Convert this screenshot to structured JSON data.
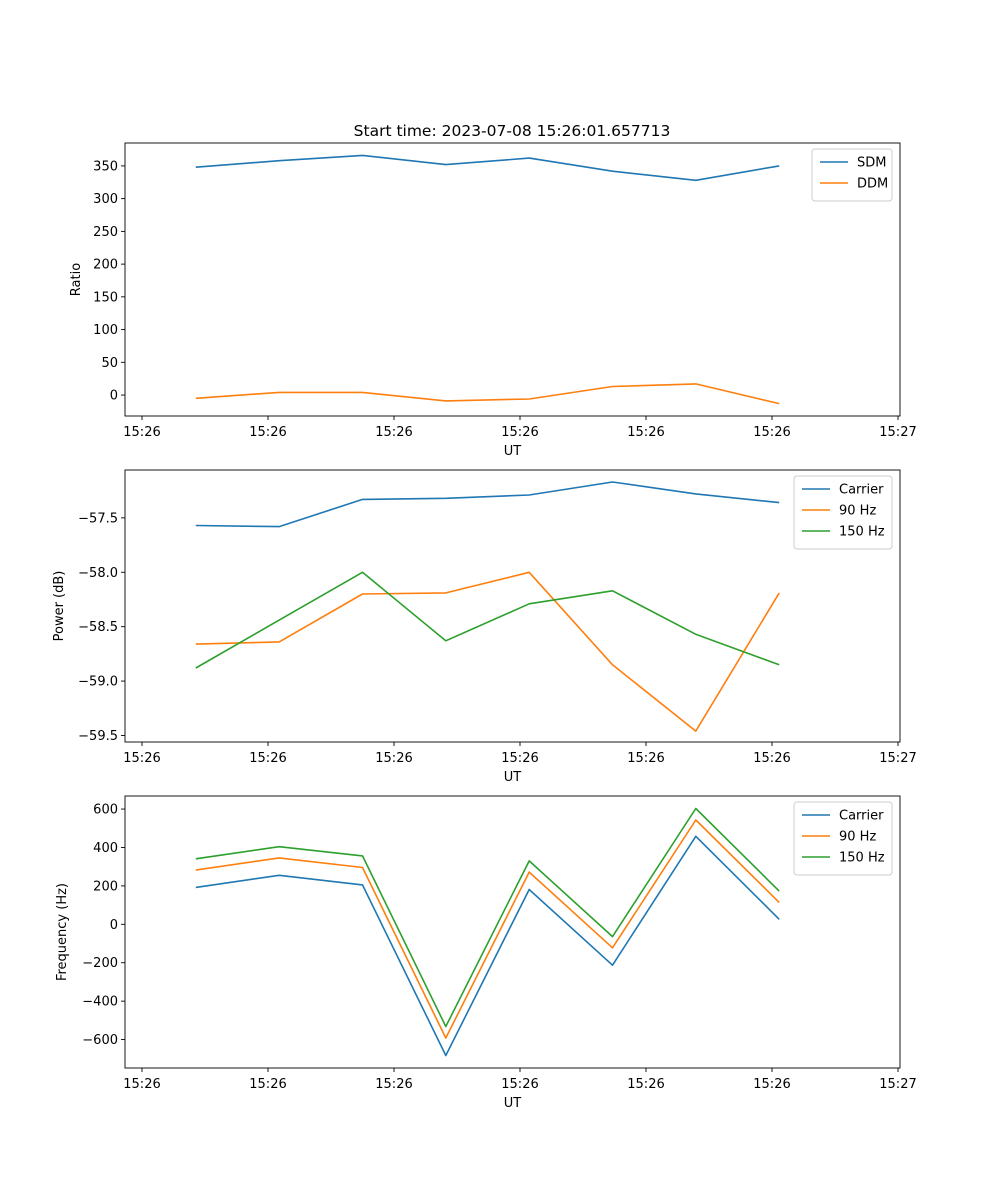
{
  "figure": {
    "title": "Start time: 2023-07-08 15:26:01.657713"
  },
  "chart_data": [
    {
      "type": "line",
      "title": "Start time: 2023-07-08 15:26:01.657713",
      "xlabel": "UT",
      "ylabel": "Ratio",
      "x_tick_labels": [
        "15:26",
        "15:26",
        "15:26",
        "15:26",
        "15:26",
        "15:26",
        "15:26",
        "15:27"
      ],
      "y_ticks": [
        0,
        50,
        100,
        150,
        200,
        250,
        300,
        350
      ],
      "y_tick_labels": [
        "0",
        "50",
        "100",
        "150",
        "200",
        "250",
        "300",
        "350"
      ],
      "ylim": [
        -32,
        385
      ],
      "x": [
        1,
        2,
        3,
        4,
        5,
        6,
        7,
        8
      ],
      "xlim": [
        0.15,
        9.45
      ],
      "series": [
        {
          "name": "SDM",
          "color": "#1f77b4",
          "values": [
            348,
            358,
            366,
            352,
            362,
            342,
            328,
            350
          ]
        },
        {
          "name": "DDM",
          "color": "#ff7f0e",
          "values": [
            -5,
            4,
            4,
            -9,
            -6,
            13,
            17,
            -13
          ]
        }
      ],
      "legend_position": "top-right"
    },
    {
      "type": "line",
      "title": "",
      "xlabel": "UT",
      "ylabel": "Power (dB)",
      "x_tick_labels": [
        "15:26",
        "15:26",
        "15:26",
        "15:26",
        "15:26",
        "15:26",
        "15:26",
        "15:27"
      ],
      "y_ticks": [
        -59.5,
        -59.0,
        -58.5,
        -58.0,
        -57.5
      ],
      "y_tick_labels": [
        "−59.5",
        "−59.0",
        "−58.5",
        "−58.0",
        "−57.5"
      ],
      "ylim": [
        -59.56,
        -57.06
      ],
      "x": [
        1,
        2,
        3,
        4,
        5,
        6,
        7,
        8
      ],
      "xlim": [
        0.15,
        9.45
      ],
      "series": [
        {
          "name": "Carrier",
          "color": "#1f77b4",
          "values": [
            -57.57,
            -57.58,
            -57.33,
            -57.32,
            -57.29,
            -57.17,
            -57.28,
            -57.36
          ]
        },
        {
          "name": "90 Hz",
          "color": "#ff7f0e",
          "values": [
            -58.66,
            -58.64,
            -58.2,
            -58.19,
            -58.0,
            -58.85,
            -59.46,
            -58.19
          ]
        },
        {
          "name": "150 Hz",
          "color": "#2ca02c",
          "values": [
            -58.88,
            -58.44,
            -58.0,
            -58.63,
            -58.29,
            -58.17,
            -58.57,
            -58.85
          ]
        }
      ],
      "legend_position": "top-right"
    },
    {
      "type": "line",
      "title": "",
      "xlabel": "UT",
      "ylabel": "Frequency (Hz)",
      "x_tick_labels": [
        "15:26",
        "15:26",
        "15:26",
        "15:26",
        "15:26",
        "15:26",
        "15:26",
        "15:27"
      ],
      "y_ticks": [
        -600,
        -400,
        -200,
        0,
        200,
        400,
        600
      ],
      "y_tick_labels": [
        "−600",
        "−400",
        "−200",
        "0",
        "200",
        "400",
        "600"
      ],
      "ylim": [
        -748,
        668
      ],
      "x": [
        1,
        2,
        3,
        4,
        5,
        6,
        7,
        8
      ],
      "xlim": [
        0.15,
        9.45
      ],
      "series": [
        {
          "name": "Carrier",
          "color": "#1f77b4",
          "values": [
            192,
            255,
            205,
            -683,
            181,
            -213,
            458,
            26
          ]
        },
        {
          "name": "90 Hz",
          "color": "#ff7f0e",
          "values": [
            282,
            346,
            296,
            -592,
            272,
            -122,
            543,
            114
          ]
        },
        {
          "name": "150 Hz",
          "color": "#2ca02c",
          "values": [
            341,
            404,
            356,
            -532,
            330,
            -64,
            603,
            173
          ]
        }
      ],
      "legend_position": "top-right"
    }
  ]
}
